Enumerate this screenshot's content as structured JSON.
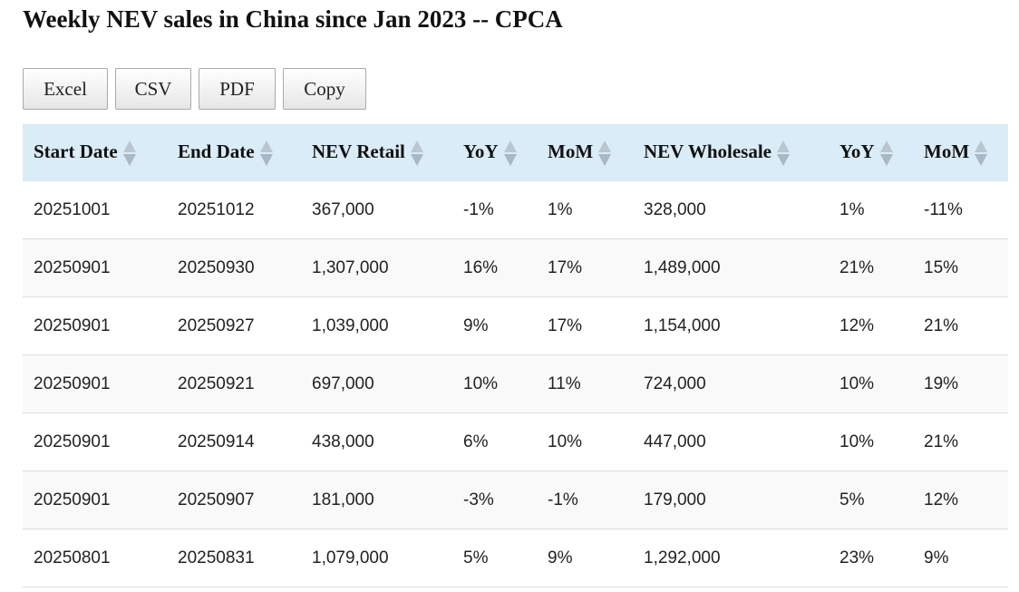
{
  "title": "Weekly NEV sales in China since Jan 2023 -- CPCA",
  "buttons": [
    "Excel",
    "CSV",
    "PDF",
    "Copy"
  ],
  "columns": [
    "Start Date",
    "End Date",
    "NEV Retail",
    "YoY",
    "MoM",
    "NEV Wholesale",
    "YoY",
    "MoM"
  ],
  "rows": [
    [
      "20251001",
      "20251012",
      "367,000",
      "-1%",
      "1%",
      "328,000",
      "1%",
      "-11%"
    ],
    [
      "20250901",
      "20250930",
      "1,307,000",
      "16%",
      "17%",
      "1,489,000",
      "21%",
      "15%"
    ],
    [
      "20250901",
      "20250927",
      "1,039,000",
      "9%",
      "17%",
      "1,154,000",
      "12%",
      "21%"
    ],
    [
      "20250901",
      "20250921",
      "697,000",
      "10%",
      "11%",
      "724,000",
      "10%",
      "19%"
    ],
    [
      "20250901",
      "20250914",
      "438,000",
      "6%",
      "10%",
      "447,000",
      "10%",
      "21%"
    ],
    [
      "20250901",
      "20250907",
      "181,000",
      "-3%",
      "-1%",
      "179,000",
      "5%",
      "12%"
    ],
    [
      "20250801",
      "20250831",
      "1,079,000",
      "5%",
      "9%",
      "1,292,000",
      "23%",
      "9%"
    ]
  ],
  "colors": {
    "header_bg": "#d9ecf7",
    "row_alt_bg": "#f9f9f9"
  }
}
